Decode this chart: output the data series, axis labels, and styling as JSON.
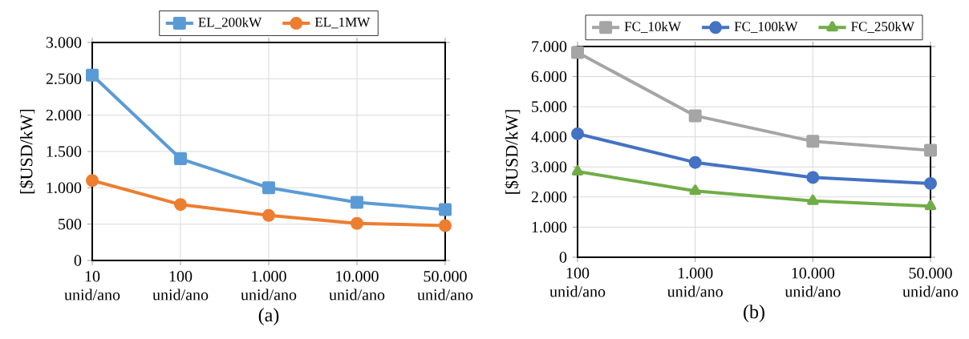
{
  "chart_data": [
    {
      "type": "line",
      "xlabel": "(a)",
      "ylabel": "[$USD/kW]",
      "categories": [
        "10 unid/ano",
        "100 unid/ano",
        "1.000 unid/ano",
        "10.000 unid/ano",
        "50.000 unid/ano"
      ],
      "series": [
        {
          "name": "EL_200kW",
          "color": "#5b9bd5",
          "marker": "square",
          "values": [
            2550,
            1400,
            1000,
            800,
            700
          ]
        },
        {
          "name": "EL_1MW",
          "color": "#ed7d31",
          "marker": "circle",
          "values": [
            1100,
            770,
            620,
            510,
            480
          ]
        }
      ],
      "ylim": [
        0,
        3000
      ],
      "yticks": [
        0,
        500,
        {
          "value": 1000,
          "label": "1.000"
        },
        {
          "value": 1500,
          "label": "1.500"
        },
        {
          "value": 2000,
          "label": "2.000"
        },
        {
          "value": 2500,
          "label": "2.500"
        },
        {
          "value": 3000,
          "label": "3.000"
        }
      ],
      "grid": true,
      "legend": "top"
    },
    {
      "type": "line",
      "xlabel": "(b)",
      "ylabel": "[$USD/kW]",
      "categories": [
        "100 unid/ano",
        "1.000 unid/ano",
        "10.000 unid/ano",
        "50.000 unid/ano"
      ],
      "series": [
        {
          "name": "FC_10kW",
          "color": "#a5a5a5",
          "marker": "square",
          "values": [
            6800,
            4700,
            3850,
            3550
          ]
        },
        {
          "name": "FC_100kW",
          "color": "#4472c4",
          "marker": "circle",
          "values": [
            4100,
            3150,
            2650,
            2450
          ]
        },
        {
          "name": "FC_250kW",
          "color": "#70ad47",
          "marker": "triangle",
          "values": [
            2850,
            2200,
            1870,
            1700
          ]
        }
      ],
      "ylim": [
        0,
        7000
      ],
      "yticks": [
        0,
        {
          "value": 1000,
          "label": "1.000"
        },
        {
          "value": 2000,
          "label": "2.000"
        },
        {
          "value": 3000,
          "label": "3.000"
        },
        {
          "value": 4000,
          "label": "4.000"
        },
        {
          "value": 5000,
          "label": "5.000"
        },
        {
          "value": 6000,
          "label": "6.000"
        },
        {
          "value": 7000,
          "label": "7.000"
        }
      ],
      "grid": true,
      "legend": "top"
    }
  ]
}
